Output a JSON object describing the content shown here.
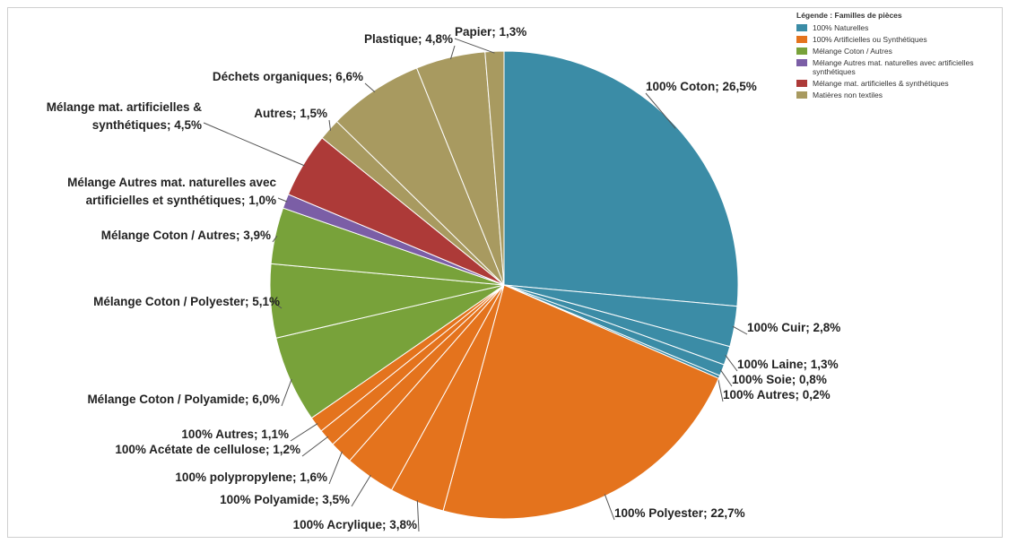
{
  "chart_data": {
    "type": "pie",
    "separator": "; ",
    "categories": [
      "100% Coton",
      "100% Cuir",
      "100% Laine",
      "100% Soie",
      "100% Autres",
      "100% Polyester",
      "100% Acrylique",
      "100% Polyamide",
      "100% polypropylene",
      "100% Acétate de cellulose",
      "100% Autres",
      "Mélange Coton / Polyamide",
      "Mélange Coton / Polyester",
      "Mélange Coton / Autres",
      "Mélange Autres mat. naturelles avec artificielles et synthétiques",
      "Mélange mat. artificielles & synthétiques",
      "Autres",
      "Déchets organiques",
      "Plastique",
      "Papier"
    ],
    "values": [
      26.5,
      2.8,
      1.3,
      0.8,
      0.2,
      22.7,
      3.8,
      3.5,
      1.6,
      1.2,
      1.1,
      6.0,
      5.1,
      3.9,
      1.0,
      4.5,
      1.5,
      6.6,
      4.8,
      1.3
    ],
    "value_labels": [
      "26,5%",
      "2,8%",
      "1,3%",
      "0,8%",
      "0,2%",
      "22,7%",
      "3,8%",
      "3,5%",
      "1,6%",
      "1,2%",
      "1,1%",
      "6,0%",
      "5,1%",
      "3,9%",
      "1,0%",
      "4,5%",
      "1,5%",
      "6,6%",
      "4,8%",
      "1,3%"
    ],
    "colors": [
      "#3b8ca6",
      "#3b8ca6",
      "#3b8ca6",
      "#3b8ca6",
      "#3b8ca6",
      "#e4731d",
      "#e4731d",
      "#e4731d",
      "#e4731d",
      "#e4731d",
      "#e4731d",
      "#78a23a",
      "#78a23a",
      "#78a23a",
      "#7b5ea6",
      "#ad3a38",
      "#a89a60",
      "#a89a60",
      "#a89a60",
      "#a89a60"
    ],
    "legend": {
      "title": "Légende : Familles de pièces",
      "position": "top-right",
      "entries": [
        {
          "name": "100% Naturelles",
          "color": "#3b8ca6"
        },
        {
          "name": "100% Artificielles ou Synthétiques",
          "color": "#e4731d"
        },
        {
          "name": "Mélange Coton / Autres",
          "color": "#78a23a"
        },
        {
          "name": "Mélange Autres mat. naturelles avec artificielles synthétiques",
          "color": "#7b5ea6"
        },
        {
          "name": "Mélange mat. artificielles & synthétiques",
          "color": "#ad3a38"
        },
        {
          "name": "Matières non textiles",
          "color": "#a89a60"
        }
      ]
    }
  }
}
